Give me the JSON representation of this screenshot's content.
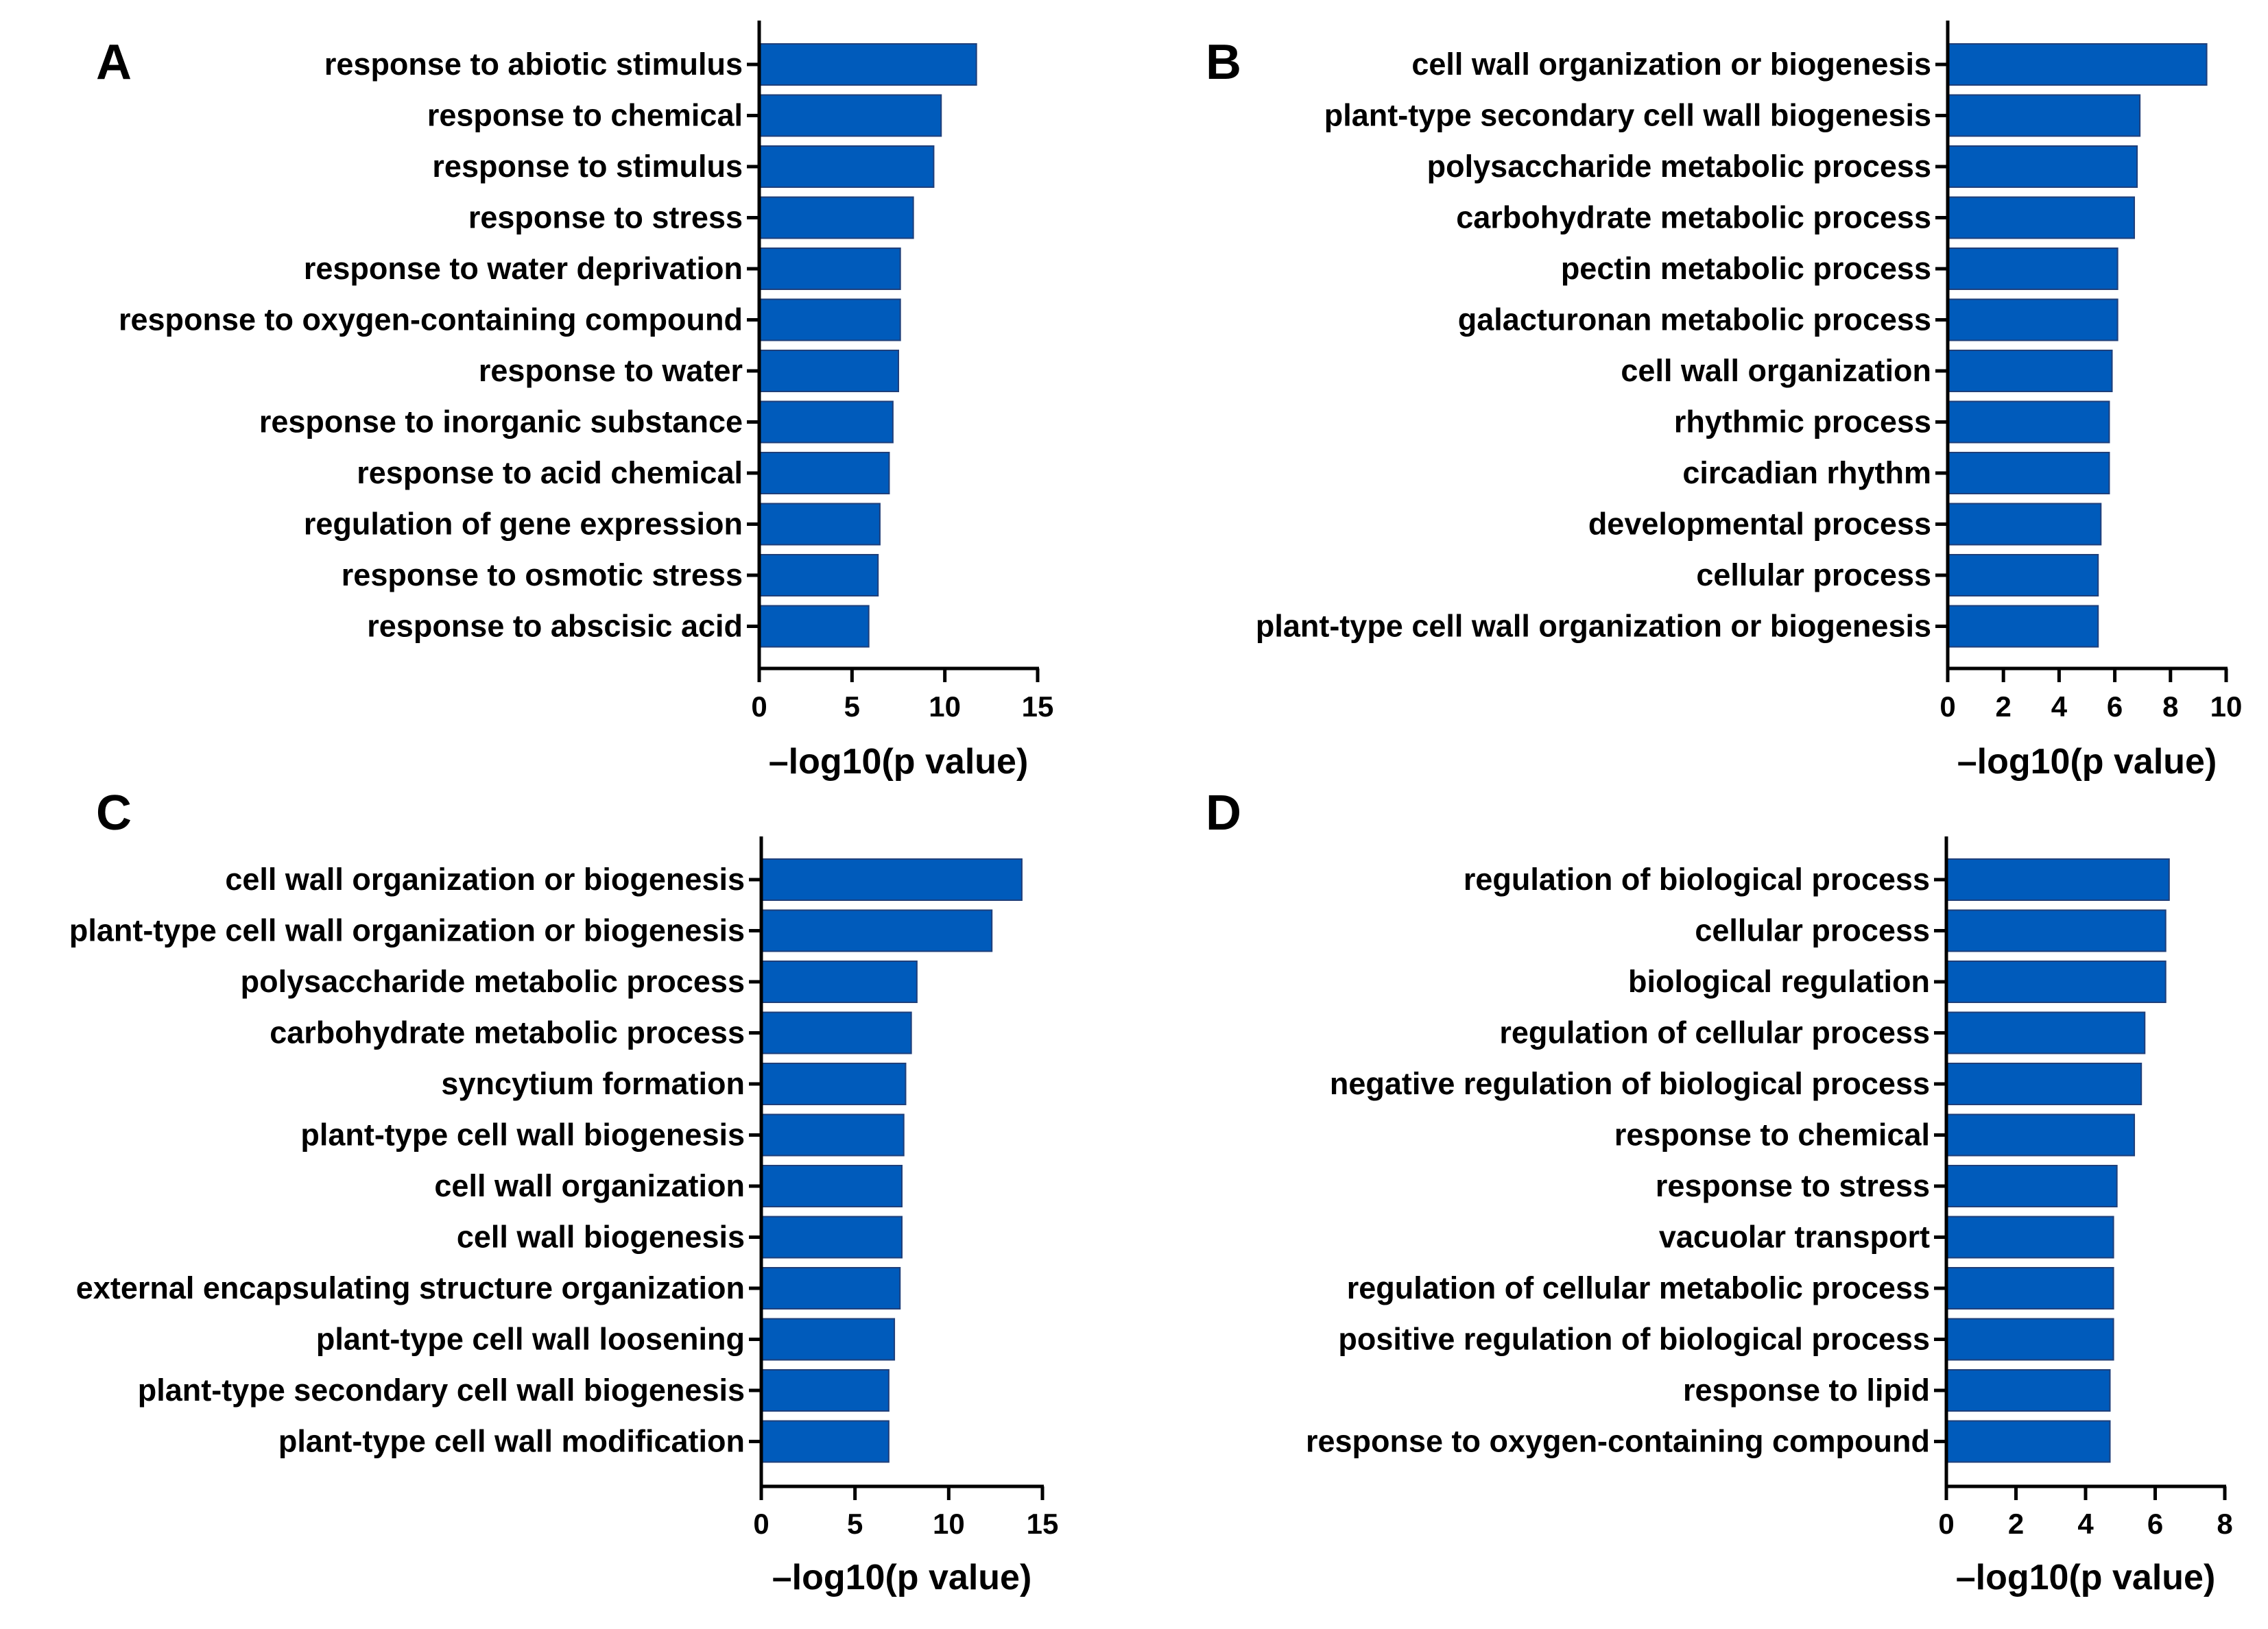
{
  "chart_data": [
    {
      "panel": "A",
      "type": "bar",
      "orientation": "horizontal",
      "categories": [
        "response to abiotic stimulus",
        "response to chemical",
        "response to stimulus",
        "response to stress",
        "response to water deprivation",
        "response to oxygen-containing compound",
        "response to water",
        "response to inorganic substance",
        "response to acid chemical",
        "regulation of gene expression",
        "response to osmotic stress",
        "response to abscisic acid"
      ],
      "values": [
        11.7,
        9.8,
        9.4,
        8.3,
        7.6,
        7.6,
        7.5,
        7.2,
        7.0,
        6.5,
        6.4,
        5.9
      ],
      "xlabel": "–log10(p value)",
      "xlim": [
        0,
        15
      ],
      "xticks": [
        "0",
        "5",
        "10",
        "15"
      ],
      "bar_color": "#005bbb"
    },
    {
      "panel": "B",
      "type": "bar",
      "orientation": "horizontal",
      "categories": [
        "cell wall organization or biogenesis",
        "plant-type secondary cell wall biogenesis",
        "polysaccharide metabolic process",
        "carbohydrate metabolic process",
        "pectin metabolic process",
        "galacturonan metabolic process",
        "cell wall organization",
        "rhythmic process",
        "circadian rhythm",
        "developmental process",
        "cellular process",
        "plant-type cell wall organization or biogenesis"
      ],
      "values": [
        9.3,
        6.9,
        6.8,
        6.7,
        6.1,
        6.1,
        5.9,
        5.8,
        5.8,
        5.5,
        5.4,
        5.4
      ],
      "xlabel": "–log10(p value)",
      "xlim": [
        0,
        10
      ],
      "xticks": [
        "0",
        "2",
        "4",
        "6",
        "8",
        "10"
      ],
      "bar_color": "#005bbb"
    },
    {
      "panel": "C",
      "type": "bar",
      "orientation": "horizontal",
      "categories": [
        "cell wall organization or biogenesis",
        "plant-type cell wall organization or biogenesis",
        "polysaccharide metabolic process",
        "carbohydrate metabolic process",
        "syncytium formation",
        "plant-type cell wall biogenesis",
        "cell wall organization",
        "cell wall biogenesis",
        "external encapsulating structure organization",
        "plant-type cell wall loosening",
        "plant-type secondary cell wall biogenesis",
        "plant-type cell wall modification"
      ],
      "values": [
        13.9,
        12.3,
        8.3,
        8.0,
        7.7,
        7.6,
        7.5,
        7.5,
        7.4,
        7.1,
        6.8,
        6.8
      ],
      "xlabel": "–log10(p value)",
      "xlim": [
        0,
        15
      ],
      "xticks": [
        "0",
        "5",
        "10",
        "15"
      ],
      "bar_color": "#005bbb"
    },
    {
      "panel": "D",
      "type": "bar",
      "orientation": "horizontal",
      "categories": [
        "regulation of biological process",
        "cellular process",
        "biological regulation",
        "regulation of cellular process",
        "negative regulation of biological process",
        "response to chemical",
        "response to stress",
        "vacuolar transport",
        "regulation of cellular metabolic process",
        "positive regulation of biological process",
        "response to lipid",
        "response to oxygen-containing compound"
      ],
      "values": [
        6.4,
        6.3,
        6.3,
        5.7,
        5.6,
        5.4,
        4.9,
        4.8,
        4.8,
        4.8,
        4.7,
        4.7
      ],
      "xlabel": "–log10(p value)",
      "xlim": [
        0,
        8
      ],
      "xticks": [
        "0",
        "2",
        "4",
        "6",
        "8"
      ],
      "bar_color": "#005bbb"
    }
  ]
}
